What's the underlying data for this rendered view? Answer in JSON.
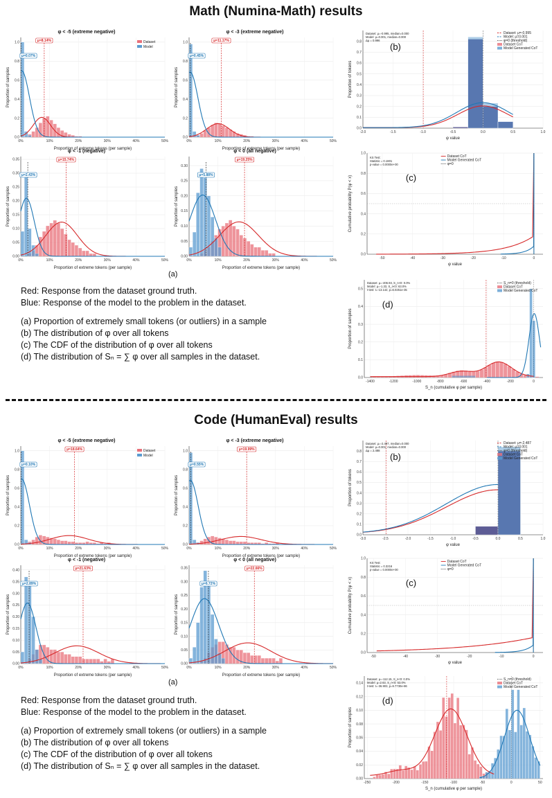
{
  "sections": [
    {
      "title": "Math (Numina-Math) results",
      "fig_a_label": "(a)",
      "notes": {
        "red": "Red: Response from the dataset ground truth.",
        "blue": "Blue: Response of the model to the problem in the dataset.",
        "items": [
          "(a)  Proportion of extremely small tokens (or outliers) in a sample",
          "(b)  The distribution of φ over all tokens",
          "(c)  The CDF of the distribution of φ over all tokens",
          "(d)  The distribution of Sₙ = ∑ φ over all samples in the dataset."
        ]
      }
    },
    {
      "title": "Code (HumanEval) results",
      "fig_a_label": "(a)",
      "notes": {
        "red": "Red: Response from the dataset ground truth.",
        "blue": "Blue: Response of the model to the problem in the dataset.",
        "items": [
          "(a)  Proportion of extremely small tokens (or outliers) in a sample",
          "(b)  The distribution of φ over all tokens",
          "(c)  The CDF of the distribution of φ over all tokens",
          "(d)  The distribution of Sₙ = ∑ φ over all samples in the dataset."
        ]
      }
    }
  ],
  "chart_data": [
    {
      "id": "m-a1",
      "type": "bar",
      "title": "φ < -5 (extreme negative)",
      "xlabel": "Proportion of extreme tokens (per sample)",
      "ylabel": "Proportion of samples",
      "xlim": [
        0,
        50
      ],
      "ylim": [
        0,
        1.05
      ],
      "xticks": [
        "0%",
        "10%",
        "20%",
        "30%",
        "40%",
        "50%"
      ],
      "yticks": [
        "0.0",
        "0.2",
        "0.4",
        "0.6",
        "0.8",
        "1.0"
      ],
      "legend": [
        "Dataset",
        "Model"
      ],
      "mu_red": "μ=8.14%",
      "mu_blue": "μ=0.07%",
      "mu_red_x": 8.14,
      "mu_blue_x": 0.07,
      "blue_bins": [
        1.0,
        0.06,
        0.02
      ],
      "red_bins": [
        0,
        0.01,
        0.03,
        0.06,
        0.1,
        0.15,
        0.2,
        0.22,
        0.18,
        0.14,
        0.1,
        0.07,
        0.05,
        0.03,
        0.02,
        0.01,
        0.01
      ]
    },
    {
      "id": "m-a2",
      "type": "bar",
      "title": "φ < -3 (extreme negative)",
      "xlabel": "Proportion of extreme tokens (per sample)",
      "ylabel": "Proportion of samples",
      "xlim": [
        0,
        50
      ],
      "ylim": [
        0,
        1.05
      ],
      "xticks": [
        "0%",
        "10%",
        "20%",
        "30%",
        "40%",
        "50%"
      ],
      "yticks": [
        "0.0",
        "0.2",
        "0.4",
        "0.6",
        "0.8",
        "1.0"
      ],
      "mu_red": "μ=11.17%",
      "mu_blue": "μ=0.45%",
      "mu_red_x": 11.17,
      "mu_blue_x": 0.45,
      "blue_bins": [
        0.98,
        0.06,
        0.02
      ],
      "red_bins": [
        0,
        0.01,
        0.02,
        0.04,
        0.07,
        0.1,
        0.13,
        0.15,
        0.14,
        0.12,
        0.1,
        0.08,
        0.06,
        0.04,
        0.03,
        0.02,
        0.01,
        0.01
      ]
    },
    {
      "id": "m-a3",
      "type": "bar",
      "title": "φ < -1 (negative)",
      "xlabel": "Proportion of extreme tokens (per sample)",
      "ylabel": "Proportion of samples",
      "xlim": [
        0,
        50
      ],
      "ylim": [
        0,
        0.36
      ],
      "xticks": [
        "0%",
        "10%",
        "20%",
        "30%",
        "40%",
        "50%"
      ],
      "yticks": [
        "0.00",
        "0.05",
        "0.10",
        "0.15",
        "0.20",
        "0.25",
        "0.30",
        "0.35"
      ],
      "mu_red": "μ=15.74%",
      "mu_blue": "μ=2.43%",
      "mu_red_x": 15.74,
      "mu_blue_x": 2.43,
      "blue_bins": [
        0.09,
        0.3,
        0.1,
        0.04,
        0.01
      ],
      "red_bins": [
        0,
        0,
        0.01,
        0.02,
        0.04,
        0.07,
        0.09,
        0.11,
        0.12,
        0.13,
        0.12,
        0.1,
        0.08,
        0.06,
        0.05,
        0.04,
        0.03,
        0.02,
        0.02,
        0.01,
        0.01
      ]
    },
    {
      "id": "m-a4",
      "type": "bar",
      "title": "φ < 0 (all negative)",
      "xlabel": "Proportion of extreme tokens (per sample)",
      "ylabel": "Proportion of samples",
      "xlim": [
        0,
        50
      ],
      "ylim": [
        0,
        0.33
      ],
      "xticks": [
        "0%",
        "10%",
        "20%",
        "30%",
        "40%",
        "50%"
      ],
      "yticks": [
        "0.00",
        "0.05",
        "0.10",
        "0.15",
        "0.20",
        "0.25",
        "0.30"
      ],
      "mu_red": "μ=19.25%",
      "mu_blue": "μ=5.88%",
      "mu_red_x": 19.25,
      "mu_blue_x": 5.88,
      "blue_bins": [
        0.03,
        0.08,
        0.21,
        0.29,
        0.26,
        0.2,
        0.13,
        0.06,
        0.03
      ],
      "red_bins": [
        0,
        0,
        0,
        0.01,
        0.02,
        0.03,
        0.05,
        0.07,
        0.09,
        0.1,
        0.11,
        0.12,
        0.1,
        0.09,
        0.07,
        0.06,
        0.05,
        0.04,
        0.03,
        0.03,
        0.02,
        0.02,
        0.01,
        0.01
      ]
    },
    {
      "id": "m-b",
      "type": "bar",
      "tag": "(b)",
      "xlabel": "φ value",
      "ylabel": "Proportion of tokens",
      "xlim": [
        -2,
        1
      ],
      "ylim": [
        0,
        0.9
      ],
      "xticks": [
        "-2.0",
        "-1.5",
        "-1.0",
        "-0.5",
        "0.0",
        "0.5",
        "1.0"
      ],
      "yticks": [
        "0.0",
        "0.1",
        "0.2",
        "0.3",
        "0.4",
        "0.5",
        "0.6",
        "0.7",
        "0.8"
      ],
      "stats": [
        "Dataset: μ=-0.995, median=0.000",
        "Model: μ=0.001, median=0.000",
        "Δμ = 0.996"
      ],
      "legend": [
        "Dataset: μ=-0.995",
        "Model: μ=0.001",
        "φ=0 (threshold)",
        "Dataset CoT",
        "Model Generated CoT"
      ]
    },
    {
      "id": "m-c",
      "type": "line",
      "tag": "(c)",
      "xlabel": "φ value",
      "ylabel": "Cumulative probability P(φ < x)",
      "xlim": [
        -55,
        3
      ],
      "ylim": [
        0,
        1
      ],
      "xticks": [
        "-50",
        "-40",
        "-30",
        "-20",
        "-10",
        "0"
      ],
      "yticks": [
        "0.0",
        "0.2",
        "0.4",
        "0.6",
        "0.8",
        "1.0"
      ],
      "stats": [
        "KS Test:",
        "Statistic = 0.1801",
        "p-value = 0.0000e+00"
      ],
      "legend": [
        "Dataset CoT",
        "Model Generated CoT",
        "φ=0"
      ]
    },
    {
      "id": "m-d",
      "type": "bar",
      "tag": "(d)",
      "xlabel": "S_n (cumulative φ per sample)",
      "ylabel": "Proportion of samples",
      "xlim": [
        -1450,
        80
      ],
      "ylim": [
        0,
        0.55
      ],
      "xticks": [
        "-1400",
        "-1200",
        "-1000",
        "-800",
        "-600",
        "-400",
        "-200",
        "0"
      ],
      "yticks": [
        "0.0",
        "0.1",
        "0.2",
        "0.3",
        "0.4",
        "0.5"
      ],
      "stats": [
        "Dataset: μ=-406.93, S_n<0: 0.0%",
        "Model: μ=-1.33, S_n<0: 63.0%",
        "t-test: t=-13.142, p=6.0251e-35"
      ],
      "legend": [
        "S_n=0 (threshold)",
        "Dataset CoT",
        "Model Generated CoT"
      ]
    },
    {
      "id": "c-a1",
      "type": "bar",
      "title": "φ < -5 (extreme negative)",
      "xlabel": "Proportion of extreme tokens (per sample)",
      "ylabel": "Proportion of samples",
      "xlim": [
        0,
        50
      ],
      "ylim": [
        0,
        1.05
      ],
      "xticks": [
        "0%",
        "10%",
        "20%",
        "30%",
        "40%",
        "50%"
      ],
      "yticks": [
        "0.0",
        "0.2",
        "0.4",
        "0.6",
        "0.8",
        "1.0"
      ],
      "legend": [
        "Dataset",
        "Model"
      ],
      "mu_red": "μ=18.64%",
      "mu_blue": "μ=0.10%",
      "mu_red_x": 18.64,
      "mu_blue_x": 0.1,
      "blue_bins": [
        1.0,
        0.05,
        0.02
      ],
      "red_bins": [
        0,
        0.01,
        0.03,
        0.05,
        0.08,
        0.1,
        0.09,
        0.08,
        0.07,
        0.06,
        0.05,
        0.04,
        0.04,
        0.03,
        0.03,
        0.02,
        0.02,
        0.02,
        0.03,
        0.02,
        0.02,
        0.01,
        0.02,
        0.01,
        0.02
      ]
    },
    {
      "id": "c-a2",
      "type": "bar",
      "title": "φ < -3 (extreme negative)",
      "xlabel": "Proportion of extreme tokens (per sample)",
      "ylabel": "Proportion of samples",
      "xlim": [
        0,
        50
      ],
      "ylim": [
        0,
        1.05
      ],
      "xticks": [
        "0%",
        "10%",
        "20%",
        "30%",
        "40%",
        "50%"
      ],
      "yticks": [
        "0.0",
        "0.2",
        "0.4",
        "0.6",
        "0.8",
        "1.0"
      ],
      "mu_red": "μ=19.99%",
      "mu_blue": "μ=0.55%",
      "mu_red_x": 19.99,
      "mu_blue_x": 0.55,
      "blue_bins": [
        0.98,
        0.05,
        0.02
      ],
      "red_bins": [
        0,
        0.01,
        0.02,
        0.04,
        0.06,
        0.08,
        0.09,
        0.08,
        0.07,
        0.06,
        0.05,
        0.04,
        0.04,
        0.03,
        0.03,
        0.03,
        0.02,
        0.02,
        0.02,
        0.02,
        0.01,
        0.02,
        0.01,
        0.01,
        0.02
      ]
    },
    {
      "id": "c-a3",
      "type": "bar",
      "title": "φ < -1 (negative)",
      "xlabel": "Proportion of extreme tokens (per sample)",
      "ylabel": "Proportion of samples",
      "xlim": [
        0,
        50
      ],
      "ylim": [
        0,
        0.42
      ],
      "xticks": [
        "0%",
        "10%",
        "20%",
        "30%",
        "40%",
        "50%"
      ],
      "yticks": [
        "0.00",
        "0.05",
        "0.10",
        "0.15",
        "0.20",
        "0.25",
        "0.30",
        "0.35",
        "0.40"
      ],
      "mu_red": "μ=21.63%",
      "mu_blue": "μ=2.89%",
      "mu_red_x": 21.63,
      "mu_blue_x": 2.89,
      "blue_bins": [
        0.05,
        0.37,
        0.34,
        0.2,
        0.06,
        0.02
      ],
      "red_bins": [
        0,
        0,
        0.02,
        0.04,
        0.06,
        0.08,
        0.08,
        0.07,
        0.06,
        0.06,
        0.05,
        0.05,
        0.04,
        0.04,
        0.03,
        0.03,
        0.03,
        0.02,
        0.02,
        0.02,
        0.02,
        0.02,
        0.01,
        0.02,
        0.01,
        0.02
      ]
    },
    {
      "id": "c-a4",
      "type": "bar",
      "title": "φ < 0 (all negative)",
      "xlabel": "Proportion of extreme tokens (per sample)",
      "ylabel": "Proportion of samples",
      "xlim": [
        0,
        50
      ],
      "ylim": [
        0,
        0.36
      ],
      "xticks": [
        "0%",
        "10%",
        "20%",
        "30%",
        "40%",
        "50%"
      ],
      "yticks": [
        "0.00",
        "0.05",
        "0.10",
        "0.15",
        "0.20",
        "0.25",
        "0.30",
        "0.35"
      ],
      "mu_red": "μ=22.66%",
      "mu_blue": "μ=6.72%",
      "mu_red_x": 22.66,
      "mu_blue_x": 6.72,
      "blue_bins": [
        0.02,
        0.06,
        0.15,
        0.28,
        0.34,
        0.3,
        0.18,
        0.09,
        0.04,
        0.02
      ],
      "red_bins": [
        0,
        0,
        0,
        0.01,
        0.02,
        0.04,
        0.06,
        0.07,
        0.08,
        0.08,
        0.07,
        0.06,
        0.06,
        0.05,
        0.05,
        0.04,
        0.04,
        0.03,
        0.03,
        0.03,
        0.02,
        0.02,
        0.02,
        0.02,
        0.01,
        0.02
      ]
    },
    {
      "id": "c-b",
      "type": "bar",
      "tag": "(b)",
      "xlabel": "φ value",
      "ylabel": "Proportion of tokens",
      "xlim": [
        -3,
        1
      ],
      "ylim": [
        0,
        0.9
      ],
      "xticks": [
        "-3.0",
        "-2.5",
        "-2.0",
        "-1.5",
        "-1.0",
        "-0.5",
        "0.0",
        "0.5",
        "1.0"
      ],
      "yticks": [
        "0.0",
        "0.1",
        "0.2",
        "0.3",
        "0.4",
        "0.5",
        "0.6",
        "0.7",
        "0.8"
      ],
      "stats": [
        "Dataset: μ=-2.487, median=0.000",
        "Model: μ=0.001, median=0.000",
        "Δμ = 2.488"
      ],
      "legend": [
        "Dataset: μ=-2.487",
        "Model: μ=0.001",
        "φ=0 (threshold)",
        "Dataset CoT",
        "Model Generated CoT"
      ]
    },
    {
      "id": "c-c",
      "type": "line",
      "tag": "(c)",
      "xlabel": "φ value",
      "ylabel": "Cumulative probability P(φ < x)",
      "xlim": [
        -52,
        3
      ],
      "ylim": [
        0,
        1
      ],
      "xticks": [
        "-50",
        "-40",
        "-30",
        "-20",
        "-10",
        "0"
      ],
      "yticks": [
        "0.0",
        "0.2",
        "0.4",
        "0.6",
        "0.8",
        "1.0"
      ],
      "stats": [
        "KS Test:",
        "Statistic = 0.3216",
        "p-value = 0.0000e+00"
      ],
      "legend": [
        "Dataset CoT",
        "Model Generated CoT",
        "φ=0"
      ]
    },
    {
      "id": "c-d",
      "type": "bar",
      "tag": "(d)",
      "xlabel": "S_n (cumulative φ per sample)",
      "ylabel": "Proportion of samples",
      "xlim": [
        -255,
        55
      ],
      "ylim": [
        0,
        0.15
      ],
      "xticks": [
        "-250",
        "-200",
        "-150",
        "-100",
        "-50",
        "0",
        "50"
      ],
      "yticks": [
        "0.00",
        "0.02",
        "0.04",
        "0.06",
        "0.08",
        "0.10",
        "0.12",
        "0.14"
      ],
      "stats": [
        "Dataset: μ=-112.15, S_n<0: 0.0%",
        "Model: μ=2.63, S_n<0: 53.0%",
        "t-test: t=-36.903, p=9.7730e-86"
      ],
      "legend": [
        "S_n=0 (threshold)",
        "Dataset CoT",
        "Model Generated CoT"
      ]
    }
  ],
  "colors": {
    "red": "#d62728",
    "red_fill": "#e8707a",
    "blue": "#1f77b4",
    "blue_fill": "#5b9bd0",
    "dark": "#4b4a8a"
  }
}
